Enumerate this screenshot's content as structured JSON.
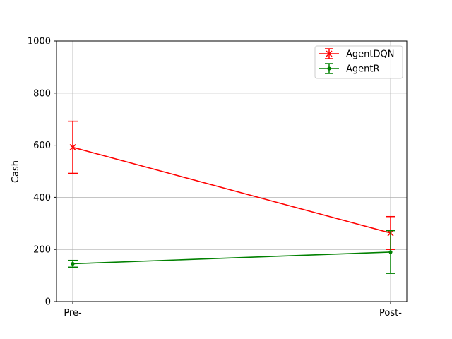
{
  "chart_data": {
    "type": "line",
    "title": "",
    "xlabel": "",
    "ylabel": "Cash",
    "categories": [
      "Pre-",
      "Post-"
    ],
    "ylim": [
      0,
      1000
    ],
    "yticks": [
      0,
      200,
      400,
      600,
      800,
      1000
    ],
    "grid": true,
    "legend_position": "top-right",
    "series": [
      {
        "name": "AgentDQN",
        "color": "#ff0000",
        "marker": "x",
        "values": [
          592,
          263
        ],
        "error": [
          100,
          63
        ]
      },
      {
        "name": "AgentR",
        "color": "#008000",
        "marker": "dot",
        "values": [
          145,
          190
        ],
        "error": [
          13,
          82
        ]
      }
    ]
  }
}
